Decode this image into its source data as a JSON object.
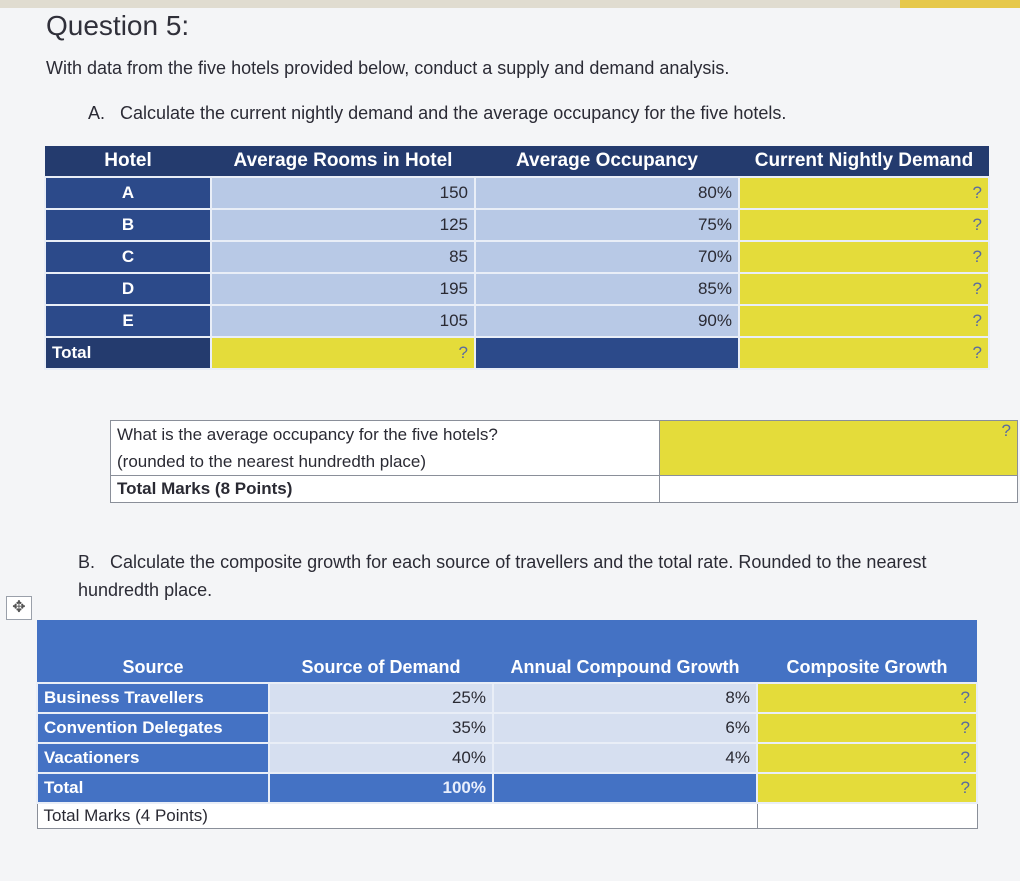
{
  "question_title": "Question 5:",
  "intro": "With data from the five hotels provided below, conduct a supply and demand analysis.",
  "part_a": {
    "label": "A.",
    "text": "Calculate the current nightly demand and the average occupancy for the five hotels.",
    "headers": [
      "Hotel",
      "Average Rooms in Hotel",
      "Average Occupancy",
      "Current Nightly Demand"
    ],
    "rows": [
      {
        "hotel": "A",
        "rooms": "150",
        "occupancy": "80%",
        "demand": "?"
      },
      {
        "hotel": "B",
        "rooms": "125",
        "occupancy": "75%",
        "demand": "?"
      },
      {
        "hotel": "C",
        "rooms": "85",
        "occupancy": "70%",
        "demand": "?"
      },
      {
        "hotel": "D",
        "rooms": "195",
        "occupancy": "85%",
        "demand": "?"
      },
      {
        "hotel": "E",
        "rooms": "105",
        "occupancy": "90%",
        "demand": "?"
      }
    ],
    "total": {
      "label": "Total",
      "rooms": "?",
      "demand": "?"
    },
    "avg_question_line1": "What is the average occupancy for the five hotels?",
    "avg_question_line2": "(rounded to the nearest hundredth place)",
    "avg_answer": "?",
    "marks": "Total Marks (8 Points)"
  },
  "part_b": {
    "label": "B.",
    "text": "Calculate the composite growth for each source of travellers and the total rate. Rounded to the nearest hundredth place.",
    "headers": [
      "Source",
      "Source of Demand",
      "Annual Compound Growth",
      "Composite Growth"
    ],
    "rows": [
      {
        "source": "Business Travellers",
        "demand": "25%",
        "growth": "8%",
        "composite": "?"
      },
      {
        "source": "Convention Delegates",
        "demand": "35%",
        "growth": "6%",
        "composite": "?"
      },
      {
        "source": "Vacationers",
        "demand": "40%",
        "growth": "4%",
        "composite": "?"
      }
    ],
    "total": {
      "label": "Total",
      "demand": "100%",
      "composite": "?"
    },
    "marks": "Total Marks (4 Points)"
  },
  "move_handle_icon": "move-arrows-icon"
}
